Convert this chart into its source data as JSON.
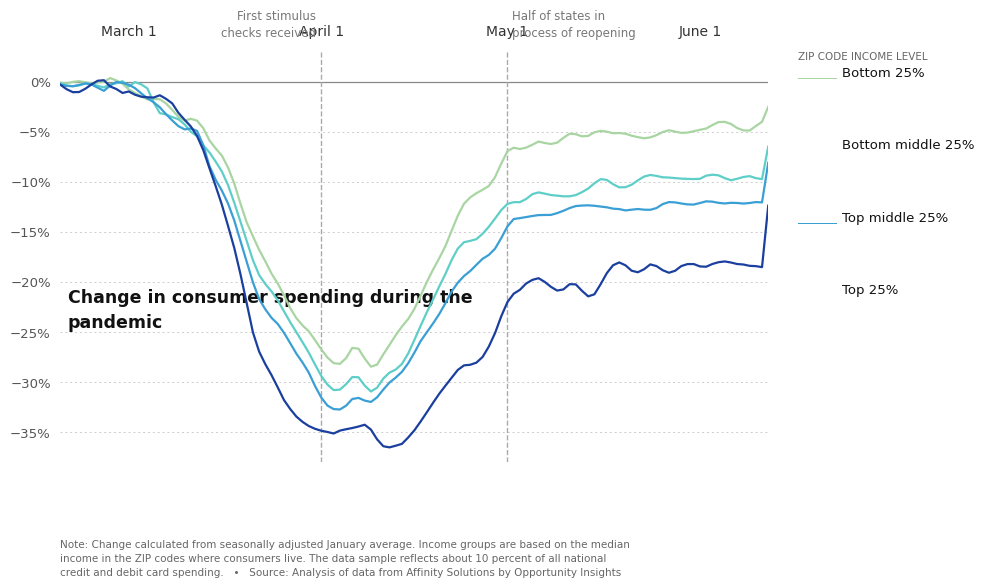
{
  "title": "Change in consumer spending during the\npandemic",
  "footnote": "Note: Change calculated from seasonally adjusted January average. Income groups are based on the median\nincome in the ZIP codes where consumers live. The data sample reflects about 10 percent of all national\ncredit and debit card spending.   •   Source: Analysis of data from Affinity Solutions by Opportunity Insights",
  "xlabel_dates": [
    "March 1",
    "April 1",
    "May 1",
    "June 1"
  ],
  "vline_labels": [
    "First stimulus\nchecks received",
    "Half of states in\nprocess of reopening"
  ],
  "ylim": [
    -38,
    3
  ],
  "yticks": [
    0,
    -5,
    -10,
    -15,
    -20,
    -25,
    -30,
    -35
  ],
  "ytick_labels": [
    "0%",
    "−5%",
    "−10%",
    "−15%",
    "−20%",
    "−25%",
    "−30%",
    "−35%"
  ],
  "legend_title": "ZIP CODE INCOME LEVEL",
  "legend_entries": [
    "Bottom 25%",
    "Bottom middle 25%",
    "Top middle 25%",
    "Top 25%"
  ],
  "colors": {
    "bottom25": "#a8d5a2",
    "bottom_mid25": "#5ecec8",
    "top_mid25": "#3a9fd4",
    "top25": "#1a3f9e"
  },
  "background": "#ffffff",
  "grid_color": "#cccccc"
}
